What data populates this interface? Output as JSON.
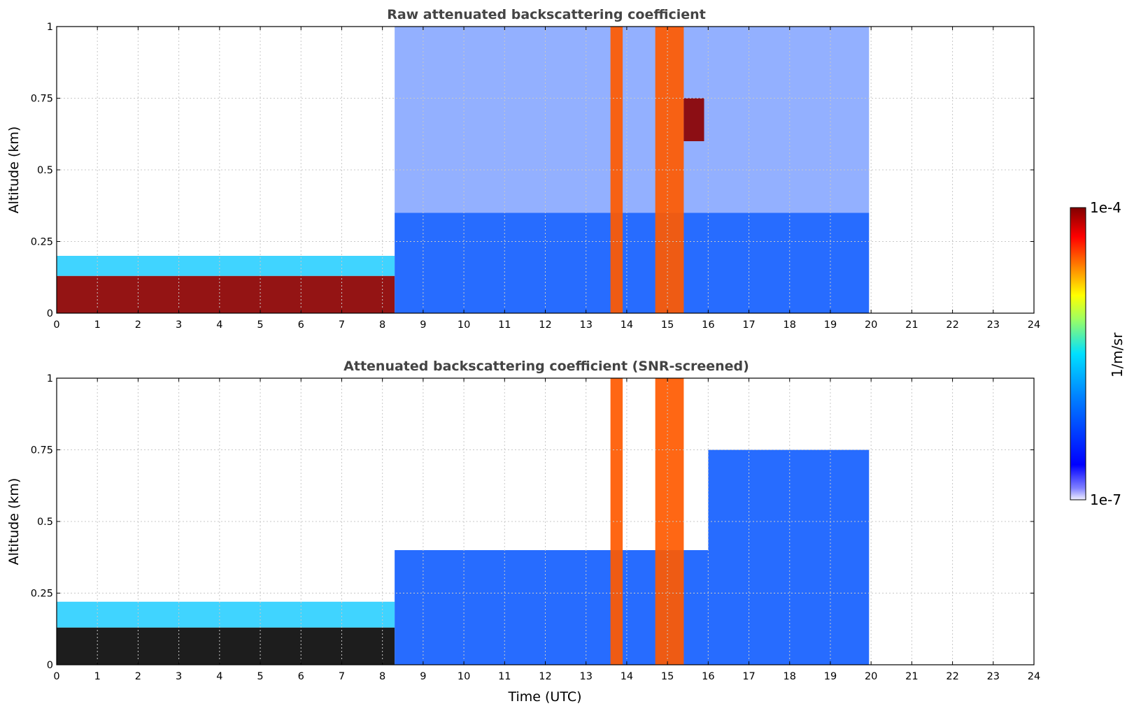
{
  "chart_data": [
    {
      "type": "heatmap",
      "title": "Raw attenuated backscattering coefficient",
      "xlabel": "",
      "ylabel": "Altitude (km)",
      "xlim": [
        0,
        24
      ],
      "ylim": [
        0,
        1
      ],
      "xticks": [
        "0",
        "1",
        "2",
        "3",
        "4",
        "5",
        "6",
        "7",
        "8",
        "9",
        "10",
        "11",
        "12",
        "13",
        "14",
        "15",
        "16",
        "17",
        "18",
        "19",
        "20",
        "21",
        "22",
        "23",
        "24"
      ],
      "yticks": [
        "0",
        "0.25",
        "0.5",
        "0.75",
        "1"
      ],
      "grid": true,
      "data_extent_hours": [
        0,
        19.95
      ],
      "regions": [
        {
          "x": [
            0,
            8.3
          ],
          "y": [
            0,
            0.13
          ],
          "level": "high"
        },
        {
          "x": [
            0,
            8.3
          ],
          "y": [
            0.13,
            0.2
          ],
          "level": "medium"
        },
        {
          "x": [
            8.3,
            19.95
          ],
          "y": [
            0,
            0.35
          ],
          "level": "low"
        },
        {
          "x": [
            8.3,
            19.95
          ],
          "y": [
            0.35,
            1.0
          ],
          "level": "noise"
        },
        {
          "x": [
            13.6,
            13.9
          ],
          "y": [
            0,
            1.0
          ],
          "level": "high-column"
        },
        {
          "x": [
            14.7,
            15.4
          ],
          "y": [
            0,
            1.0
          ],
          "level": "high-column"
        },
        {
          "x": [
            15.4,
            15.9
          ],
          "y": [
            0.6,
            0.75
          ],
          "level": "high"
        }
      ]
    },
    {
      "type": "heatmap",
      "title": "Attenuated backscattering coefficient (SNR-screened)",
      "xlabel": "Time (UTC)",
      "ylabel": "Altitude (km)",
      "xlim": [
        0,
        24
      ],
      "ylim": [
        0,
        1
      ],
      "xticks": [
        "0",
        "1",
        "2",
        "3",
        "4",
        "5",
        "6",
        "7",
        "8",
        "9",
        "10",
        "11",
        "12",
        "13",
        "14",
        "15",
        "16",
        "17",
        "18",
        "19",
        "20",
        "21",
        "22",
        "23",
        "24"
      ],
      "yticks": [
        "0",
        "0.25",
        "0.5",
        "0.75",
        "1"
      ],
      "grid": true,
      "data_extent_hours": [
        0,
        19.95
      ],
      "regions": [
        {
          "x": [
            0,
            8.3
          ],
          "y": [
            0,
            0.13
          ],
          "level": "saturated"
        },
        {
          "x": [
            0,
            8.3
          ],
          "y": [
            0.13,
            0.22
          ],
          "level": "medium"
        },
        {
          "x": [
            8.3,
            19.95
          ],
          "y": [
            0,
            0.4
          ],
          "level": "low"
        },
        {
          "x": [
            16,
            19.95
          ],
          "y": [
            0.4,
            0.75
          ],
          "level": "low"
        },
        {
          "x": [
            13.6,
            13.9
          ],
          "y": [
            0,
            1.0
          ],
          "level": "high-column"
        },
        {
          "x": [
            14.7,
            15.4
          ],
          "y": [
            0,
            1.0
          ],
          "level": "high-column"
        }
      ]
    }
  ],
  "colorbar": {
    "max_label": "1e-4",
    "min_label": "1e-7",
    "unit_label": "1/m/sr",
    "colormap": "jet"
  }
}
